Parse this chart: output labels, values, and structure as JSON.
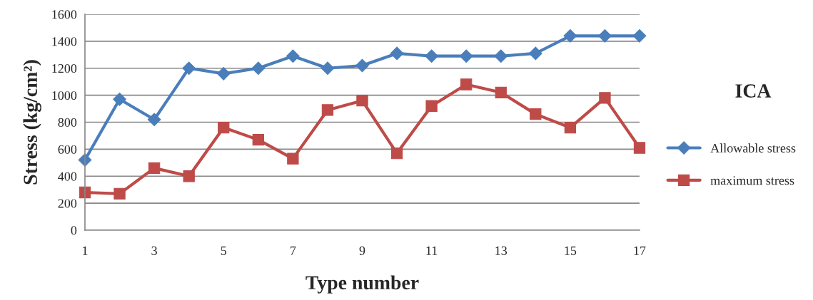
{
  "chart_data": {
    "type": "line",
    "title": "ICA",
    "xlabel": "Type number",
    "ylabel": "Stress (kg/cm²)",
    "x": [
      1,
      2,
      3,
      4,
      5,
      6,
      7,
      8,
      9,
      10,
      11,
      12,
      13,
      14,
      15,
      16,
      17
    ],
    "xlim": [
      1,
      17
    ],
    "xticks": [
      1,
      3,
      5,
      7,
      9,
      11,
      13,
      15,
      17
    ],
    "ylim": [
      0,
      1600
    ],
    "yticks": [
      0,
      200,
      400,
      600,
      800,
      1000,
      1200,
      1400,
      1600
    ],
    "grid": "y",
    "legend": "right",
    "series": [
      {
        "name": "Allowable stress",
        "color": "#4a7ebb",
        "marker": "diamond",
        "values": [
          520,
          970,
          820,
          1200,
          1160,
          1200,
          1290,
          1200,
          1220,
          1310,
          1290,
          1290,
          1290,
          1310,
          1440,
          1440,
          1440
        ]
      },
      {
        "name": "maximum stress",
        "color": "#be4b48",
        "marker": "square",
        "values": [
          280,
          270,
          460,
          400,
          760,
          670,
          530,
          890,
          960,
          570,
          920,
          1080,
          1020,
          860,
          760,
          980,
          610
        ]
      }
    ]
  }
}
